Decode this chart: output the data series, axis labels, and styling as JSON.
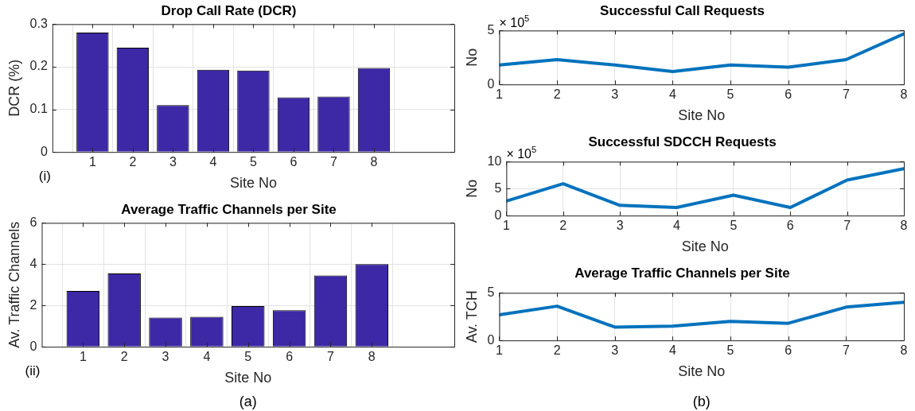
{
  "chart_data": [
    {
      "type": "bar",
      "title": "Drop Call Rate (DCR)",
      "xlabel": "Site No",
      "ylabel": "DCR (%)",
      "x": [
        1,
        2,
        3,
        4,
        5,
        6,
        7,
        8
      ],
      "values": [
        0.28,
        0.245,
        0.11,
        0.193,
        0.191,
        0.128,
        0.13,
        0.197
      ],
      "color": "#3d28a6",
      "xlim": [
        0,
        10
      ],
      "xticks": [
        1,
        2,
        3,
        4,
        5,
        6,
        7,
        8
      ],
      "ylim": [
        0,
        0.3
      ],
      "yticks": [
        0,
        0.1,
        0.2,
        0.3
      ],
      "grid": true,
      "annotations": [
        "(i)"
      ]
    },
    {
      "type": "bar",
      "title": "Average Traffic Channels per Site",
      "xlabel": "Site No",
      "ylabel": "Av. Traffic Channels",
      "x": [
        1,
        2,
        3,
        4,
        5,
        6,
        7,
        8
      ],
      "values": [
        2.7,
        3.55,
        1.41,
        1.45,
        1.97,
        1.77,
        3.45,
        4.0
      ],
      "color": "#3d28a6",
      "xlim": [
        0,
        10
      ],
      "xticks": [
        1,
        2,
        3,
        4,
        5,
        6,
        7,
        8
      ],
      "ylim": [
        0,
        6
      ],
      "yticks": [
        0,
        2,
        4,
        6
      ],
      "grid": true,
      "annotations": [
        "(ii)",
        "(a)"
      ]
    },
    {
      "type": "line",
      "title": "Successful Call Requests",
      "xlabel": "Site No",
      "ylabel": "No",
      "x": [
        1,
        2,
        3,
        4,
        5,
        6,
        7,
        8
      ],
      "values": [
        1.8,
        2.3,
        1.8,
        1.2,
        1.8,
        1.6,
        2.3,
        4.7
      ],
      "color": "#0072bd",
      "xlim": [
        1,
        8
      ],
      "xticks": [
        1,
        2,
        3,
        4,
        5,
        6,
        7,
        8
      ],
      "ylim": [
        0,
        5
      ],
      "yticks": [
        0,
        5
      ],
      "grid": true,
      "annotations": [
        "× 10$^{5}$"
      ]
    },
    {
      "type": "line",
      "title": "Successful SDCCH Requests",
      "xlabel": "Site No",
      "ylabel": "No",
      "x": [
        1,
        2,
        3,
        4,
        5,
        6,
        7,
        8
      ],
      "values": [
        2.7,
        5.9,
        1.9,
        1.5,
        3.8,
        1.5,
        6.6,
        8.7
      ],
      "color": "#0072bd",
      "xlim": [
        1,
        8
      ],
      "xticks": [
        1,
        2,
        3,
        4,
        5,
        6,
        7,
        8
      ],
      "ylim": [
        0,
        10
      ],
      "yticks": [
        0,
        5,
        10
      ],
      "grid": true,
      "annotations": [
        "× 10$^{5}$"
      ]
    },
    {
      "type": "line",
      "title": "Average Traffic Channels per Site",
      "xlabel": "Site No",
      "ylabel": "Av. TCH",
      "x": [
        1,
        2,
        3,
        4,
        5,
        6,
        7,
        8
      ],
      "values": [
        2.7,
        3.6,
        1.4,
        1.5,
        2.0,
        1.8,
        3.5,
        4.0
      ],
      "color": "#0072bd",
      "xlim": [
        1,
        8
      ],
      "xticks": [
        1,
        2,
        3,
        4,
        5,
        6,
        7,
        8
      ],
      "ylim": [
        0,
        5
      ],
      "yticks": [
        0,
        5
      ],
      "grid": true,
      "annotations": [
        "(b)"
      ]
    }
  ]
}
